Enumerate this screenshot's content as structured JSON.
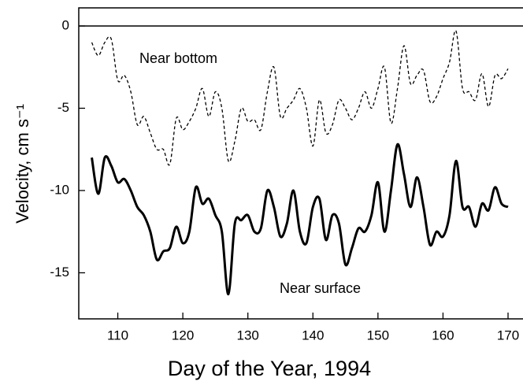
{
  "chart_data": {
    "type": "line",
    "xlabel": "Day of the Year, 1994",
    "ylabel": "Velocity, cm s⁻¹",
    "x": [
      106,
      107,
      108,
      109,
      110,
      111,
      112,
      113,
      114,
      115,
      116,
      117,
      118,
      119,
      120,
      121,
      122,
      123,
      124,
      125,
      126,
      127,
      128,
      129,
      130,
      131,
      132,
      133,
      134,
      135,
      136,
      137,
      138,
      139,
      140,
      141,
      142,
      143,
      144,
      145,
      146,
      147,
      148,
      149,
      150,
      151,
      152,
      153,
      154,
      155,
      156,
      157,
      158,
      159,
      160,
      161,
      162,
      163,
      164,
      165,
      166,
      167,
      168,
      169,
      170
    ],
    "series": [
      {
        "name": "Near bottom",
        "color": "#000",
        "dash": true,
        "values": [
          -1.0,
          -1.8,
          -1.0,
          -0.8,
          -3.3,
          -3.0,
          -4.0,
          -6.0,
          -5.5,
          -6.5,
          -7.5,
          -7.5,
          -8.4,
          -5.6,
          -6.3,
          -5.8,
          -5.0,
          -3.8,
          -5.5,
          -4.0,
          -5.0,
          -8.2,
          -7.0,
          -5.0,
          -5.8,
          -5.7,
          -6.3,
          -4.0,
          -2.5,
          -5.5,
          -5.0,
          -4.5,
          -3.8,
          -5.0,
          -7.3,
          -4.5,
          -6.5,
          -6.0,
          -4.5,
          -5.0,
          -5.7,
          -5.0,
          -4.0,
          -5.0,
          -3.8,
          -2.5,
          -5.9,
          -3.8,
          -1.2,
          -3.5,
          -3.0,
          -2.7,
          -4.6,
          -4.3,
          -3.2,
          -2.2,
          -0.3,
          -3.8,
          -4.0,
          -4.5,
          -2.9,
          -4.9,
          -3.0,
          -3.2,
          -2.6
        ]
      },
      {
        "name": "Near surface",
        "color": "#000",
        "dash": false,
        "values": [
          -8.0,
          -10.2,
          -8.0,
          -8.5,
          -9.5,
          -9.3,
          -10.0,
          -11.0,
          -11.5,
          -12.5,
          -14.2,
          -13.7,
          -13.5,
          -12.2,
          -13.2,
          -12.5,
          -9.8,
          -10.8,
          -10.5,
          -11.5,
          -12.5,
          -16.3,
          -12.0,
          -11.8,
          -11.5,
          -12.5,
          -12.3,
          -10.0,
          -11.0,
          -12.8,
          -12.0,
          -10.0,
          -12.5,
          -13.2,
          -11.0,
          -10.5,
          -13.0,
          -11.5,
          -12.0,
          -14.5,
          -13.5,
          -12.3,
          -12.5,
          -11.5,
          -9.5,
          -12.5,
          -10.0,
          -7.2,
          -9.0,
          -11.0,
          -9.2,
          -11.0,
          -13.3,
          -12.5,
          -12.8,
          -11.5,
          -8.2,
          -11.0,
          -11.0,
          -12.2,
          -10.8,
          -11.2,
          -9.8,
          -10.8,
          -11.0
        ]
      }
    ],
    "hlines": [
      0
    ],
    "xlim": [
      104,
      172.3
    ],
    "ylim": [
      -17.8,
      1.1
    ],
    "xticks": [
      110,
      120,
      130,
      140,
      150,
      160,
      170
    ],
    "yticks": [
      0,
      -5,
      -10,
      -15
    ]
  }
}
